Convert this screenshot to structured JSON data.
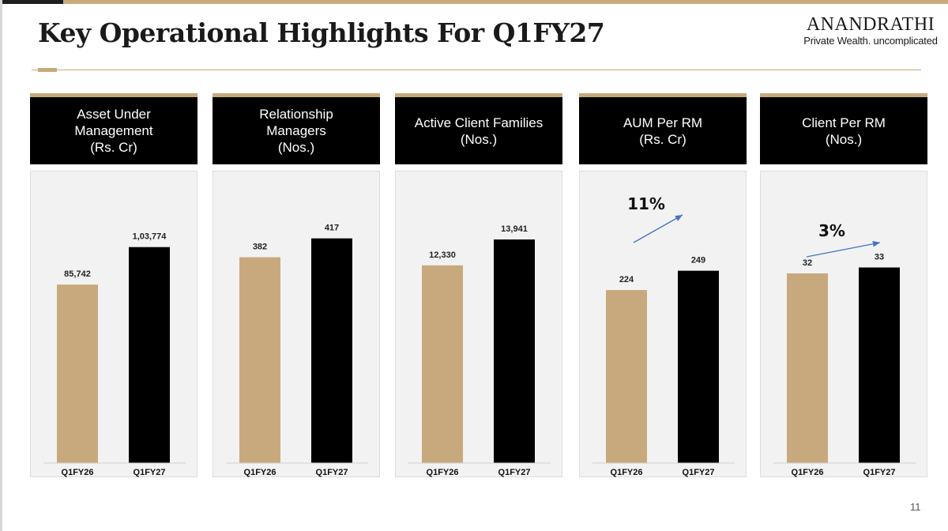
{
  "slide": {
    "title": "Key Operational Highlights For Q1FY27",
    "page_number": "11",
    "brand_name": "ANANDRATHI",
    "brand_tagline": "Private Wealth. uncomplicated"
  },
  "colors": {
    "accent_gold": "#c8a97e",
    "bar_prior": "#c8a97e",
    "bar_current": "#000000",
    "arrow": "#4472c4",
    "panel_bg": "#f2f2f2"
  },
  "chart_data": [
    {
      "type": "bar",
      "title": "Asset Under\nManagement\n(Rs. Cr)",
      "categories": [
        "Q1FY26",
        "Q1FY27"
      ],
      "values": [
        85742,
        103774
      ],
      "data_labels": [
        "85,742",
        "1,03,774"
      ],
      "ylim": [
        0,
        131000
      ],
      "growth_label": ""
    },
    {
      "type": "bar",
      "title": "Relationship\nManagers\n(Nos.)",
      "categories": [
        "Q1FY26",
        "Q1FY27"
      ],
      "values": [
        382,
        417
      ],
      "data_labels": [
        "382",
        "417"
      ],
      "ylim": [
        0,
        506
      ],
      "growth_label": ""
    },
    {
      "type": "bar",
      "title": "Active Client Families\n(Nos.)",
      "categories": [
        "Q1FY26",
        "Q1FY27"
      ],
      "values": [
        12330,
        13941
      ],
      "data_labels": [
        "12,330",
        "13,941"
      ],
      "ylim": [
        0,
        17000
      ],
      "growth_label": ""
    },
    {
      "type": "bar",
      "title": "AUM Per RM\n(Rs. Cr)",
      "categories": [
        "Q1FY26",
        "Q1FY27"
      ],
      "values": [
        224,
        249
      ],
      "data_labels": [
        "224",
        "249"
      ],
      "ylim": [
        0,
        353
      ],
      "growth_label": "11%"
    },
    {
      "type": "bar",
      "title": "Client Per RM\n(Nos.)",
      "categories": [
        "Q1FY26",
        "Q1FY27"
      ],
      "values": [
        32,
        33
      ],
      "data_labels": [
        "32",
        "33"
      ],
      "ylim": [
        0,
        46
      ],
      "growth_label": "3%"
    }
  ]
}
